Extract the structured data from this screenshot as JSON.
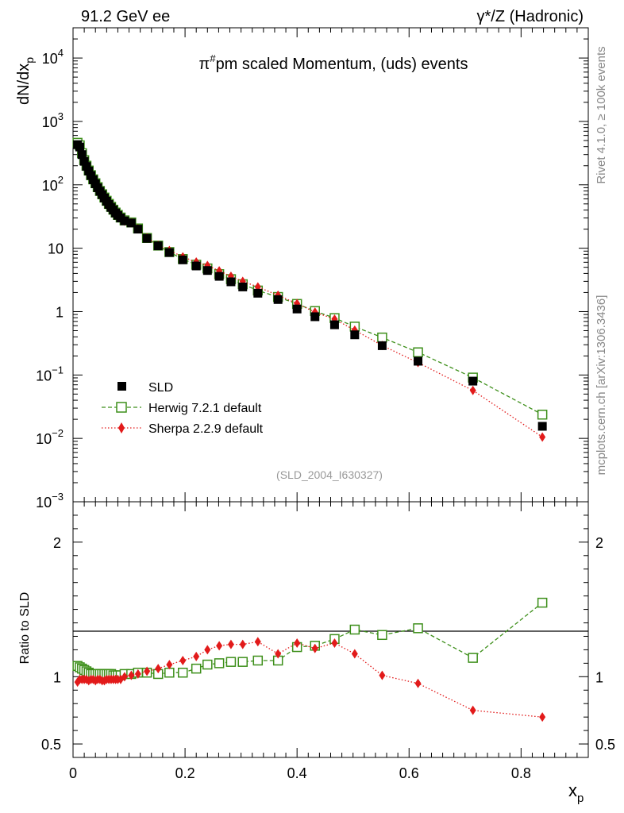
{
  "header": {
    "left": "91.2 GeV ee",
    "right": "γ*/Z (Hadronic)"
  },
  "side_labels": {
    "rivet": "Rivet 4.1.0, ≥ 100k events",
    "source": "mcplots.cern.ch [arXiv:1306.3436]"
  },
  "analysis_id": "(SLD_2004_I630327)",
  "chart_data": {
    "type": "scatter",
    "title": "π#pm scaled Momentum, (uds) events",
    "title_main": "pm scaled Momentum, (uds) events",
    "title_pi": "π",
    "title_sup": "#",
    "ylabel": "dN/dx",
    "ylabel_sub": "p",
    "xlabel": "x",
    "xlabel_sub": "p",
    "ratio_ylabel": "Ratio to SLD",
    "xlim": [
      0,
      0.92
    ],
    "ylim": [
      0.001,
      30000
    ],
    "yscale": "log",
    "ratio_ylim": [
      0.4,
      2.3
    ],
    "x_ticks": [
      "0",
      "0.2",
      "0.4",
      "0.6",
      "0.8"
    ],
    "y_tick_labels": [
      {
        "value": 0.001,
        "base": "10",
        "exp": "−3"
      },
      {
        "value": 0.01,
        "base": "10",
        "exp": "−2"
      },
      {
        "value": 0.1,
        "base": "10",
        "exp": "−1"
      },
      {
        "value": 1,
        "base": "1",
        "exp": ""
      },
      {
        "value": 10,
        "base": "10",
        "exp": ""
      },
      {
        "value": 100,
        "base": "10",
        "exp": "2"
      },
      {
        "value": 1000,
        "base": "10",
        "exp": "3"
      },
      {
        "value": 10000,
        "base": "10",
        "exp": "4"
      }
    ],
    "ratio_ticks": [
      "0.5",
      "1",
      "2"
    ],
    "x": [
      0.008,
      0.012,
      0.016,
      0.02,
      0.024,
      0.028,
      0.032,
      0.036,
      0.04,
      0.044,
      0.048,
      0.052,
      0.056,
      0.06,
      0.064,
      0.068,
      0.072,
      0.076,
      0.08,
      0.085,
      0.092,
      0.104,
      0.116,
      0.132,
      0.152,
      0.172,
      0.196,
      0.22,
      0.24,
      0.261,
      0.282,
      0.303,
      0.33,
      0.366,
      0.4,
      0.432,
      0.467,
      0.503,
      0.552,
      0.616,
      0.714,
      0.838
    ],
    "series": [
      {
        "name": "SLD",
        "color": "#000000",
        "marker": "filled-square",
        "values": [
          430,
          395,
          300,
          235,
          195,
          165,
          140,
          120,
          104,
          90,
          79,
          70,
          62,
          55,
          49,
          44,
          40,
          36,
          33,
          30,
          27,
          25,
          20,
          14.3,
          10.9,
          8.55,
          6.55,
          5.25,
          4.45,
          3.6,
          2.95,
          2.45,
          1.95,
          1.55,
          1.1,
          0.83,
          0.62,
          0.43,
          0.29,
          0.165,
          0.08,
          0.0155
        ]
      },
      {
        "name": "Herwig 7.2.1 default",
        "color": "#3d8f1a",
        "marker": "open-square",
        "line": "dashed",
        "values": [
          460,
          420,
          315,
          245,
          200,
          168,
          142,
          122,
          106,
          92,
          80,
          71,
          63,
          56,
          50,
          45,
          40.5,
          36.5,
          33.5,
          30.5,
          27.5,
          25.5,
          20.5,
          14.5,
          11.0,
          8.7,
          6.75,
          5.5,
          4.8,
          3.9,
          3.25,
          2.7,
          2.15,
          1.7,
          1.32,
          1.02,
          0.79,
          0.58,
          0.39,
          0.228,
          0.091,
          0.0237
        ]
      },
      {
        "name": "Sherpa 2.2.9 default",
        "color": "#e21a1a",
        "marker": "filled-diamond",
        "line": "dotted",
        "values": [
          410,
          385,
          292,
          228,
          190,
          160,
          137,
          117,
          101,
          88,
          77,
          68,
          60,
          54,
          48,
          43,
          39,
          35,
          32.5,
          29.5,
          26.8,
          25.2,
          20.3,
          14.6,
          11.1,
          9.2,
          7.3,
          6.05,
          5.35,
          4.4,
          3.6,
          3.0,
          2.45,
          1.81,
          1.34,
          0.98,
          0.76,
          0.51,
          0.292,
          0.157,
          0.057,
          0.0105
        ]
      }
    ],
    "ratios": {
      "Herwig 7.2.1 default": [
        1.08,
        1.07,
        1.06,
        1.05,
        1.04,
        1.03,
        1.02,
        1.02,
        1.02,
        1.02,
        1.02,
        1.02,
        1.02,
        1.02,
        1.02,
        1.02,
        1.01,
        1.01,
        1.01,
        1.01,
        1.02,
        1.02,
        1.03,
        1.03,
        1.02,
        1.03,
        1.03,
        1.06,
        1.09,
        1.1,
        1.11,
        1.11,
        1.12,
        1.12,
        1.22,
        1.23,
        1.28,
        1.35,
        1.31,
        1.36,
        1.14,
        1.55
      ],
      "Sherpa 2.2.9 default": [
        0.96,
        0.98,
        0.98,
        0.98,
        0.98,
        0.97,
        0.98,
        0.98,
        0.97,
        0.98,
        0.98,
        0.97,
        0.97,
        0.98,
        0.98,
        0.98,
        0.98,
        0.98,
        0.98,
        0.98,
        1.0,
        1.01,
        1.02,
        1.04,
        1.06,
        1.09,
        1.12,
        1.15,
        1.2,
        1.23,
        1.24,
        1.24,
        1.26,
        1.17,
        1.25,
        1.21,
        1.25,
        1.17,
        1.01,
        0.95,
        0.75,
        0.7
      ]
    },
    "legend_position": "lower-left"
  }
}
